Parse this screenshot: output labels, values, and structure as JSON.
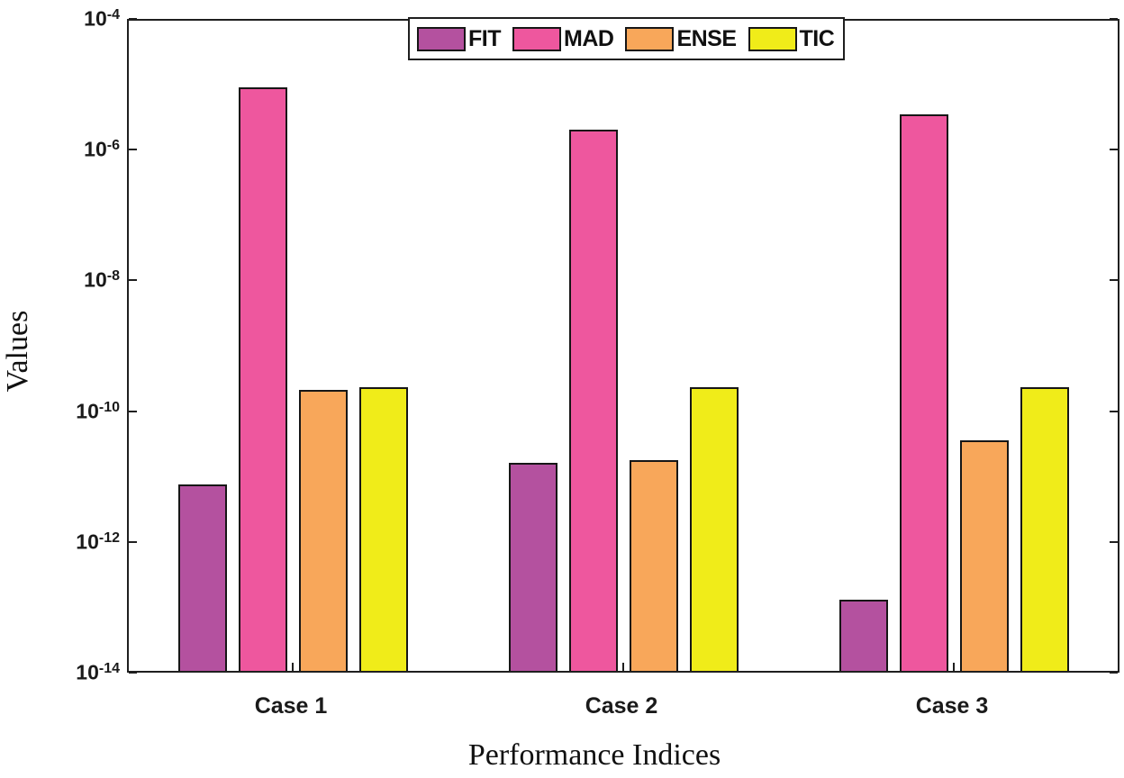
{
  "figure": {
    "background": "#ffffff",
    "axis_color": "#1f1f1f",
    "text_color": "#1a1a1a"
  },
  "chart_data": {
    "type": "bar",
    "title": "",
    "xlabel": "Performance Indices",
    "ylabel": "Values",
    "yscale": "log",
    "ylim": [
      1e-14,
      0.0001
    ],
    "y_tick_exponents": [
      -4,
      -6,
      -8,
      -10,
      -12,
      -14
    ],
    "y_tick_base": "10",
    "categories": [
      "Case 1",
      "Case 2",
      "Case 3"
    ],
    "series": [
      {
        "name": "FIT",
        "color": "#b4519f",
        "values": [
          7.5e-12,
          1.6e-11,
          1.3e-13
        ]
      },
      {
        "name": "MAD",
        "color": "#ee579e",
        "values": [
          9e-06,
          2e-06,
          3.5e-06
        ]
      },
      {
        "name": "ENSE",
        "color": "#f8a75a",
        "values": [
          2.1e-10,
          1.8e-11,
          3.6e-11
        ]
      },
      {
        "name": "TIC",
        "color": "#f0ec19",
        "values": [
          2.3e-10,
          2.3e-10,
          2.3e-10
        ]
      }
    ],
    "legend_position": "top-center",
    "grid": false
  }
}
